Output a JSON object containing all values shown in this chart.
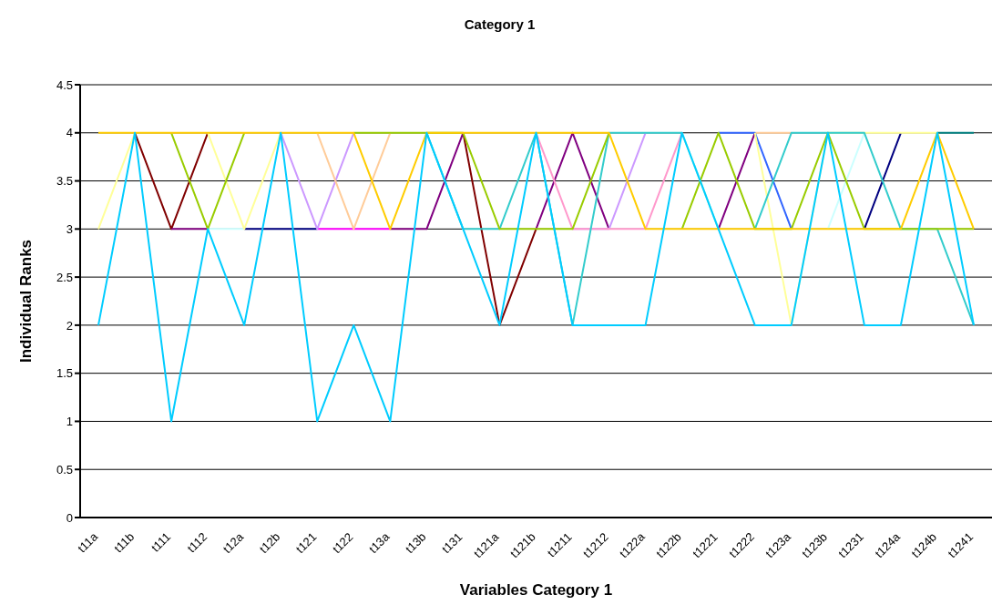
{
  "chart_data": {
    "type": "line",
    "title": "Category 1",
    "xlabel": "Variables Category 1",
    "ylabel": "Individual Ranks",
    "categories": [
      "t11a",
      "t11b",
      "t111",
      "t112",
      "t12a",
      "t12b",
      "t121",
      "t122",
      "t13a",
      "t13b",
      "t131",
      "t121a",
      "t121b",
      "t1211",
      "t1212",
      "t122a",
      "t122b",
      "t1221",
      "t1222",
      "t123a",
      "t123b",
      "t1231",
      "t124a",
      "t124b",
      "t1241"
    ],
    "ylim": [
      0,
      4.5
    ],
    "yticks": [
      0,
      0.5,
      1,
      1.5,
      2,
      2.5,
      3,
      3.5,
      4,
      4.5
    ],
    "grid": "y",
    "marker": "none",
    "line_style": "solid",
    "series": [
      {
        "color": "#800000",
        "values": [
          null,
          4,
          3,
          4,
          null,
          null,
          null,
          null,
          null,
          null,
          4,
          2,
          3,
          null,
          null,
          null,
          null,
          null,
          null,
          null,
          null,
          null,
          null,
          null,
          null
        ]
      },
      {
        "color": "#800080",
        "values": [
          null,
          null,
          3,
          3,
          null,
          null,
          null,
          null,
          3,
          3,
          4,
          null,
          3,
          4,
          3,
          null,
          null,
          3,
          4,
          null,
          null,
          null,
          null,
          null,
          null
        ]
      },
      {
        "color": "#000080",
        "values": [
          null,
          null,
          null,
          null,
          3,
          3,
          3,
          null,
          null,
          null,
          null,
          null,
          null,
          null,
          null,
          null,
          null,
          null,
          null,
          null,
          null,
          3,
          4,
          null,
          null
        ]
      },
      {
        "color": "#ff00ff",
        "values": [
          null,
          null,
          null,
          null,
          null,
          null,
          3,
          3,
          3,
          null,
          null,
          null,
          null,
          null,
          null,
          null,
          null,
          null,
          null,
          null,
          null,
          null,
          null,
          null,
          null
        ]
      },
      {
        "color": "#cc99ff",
        "values": [
          null,
          null,
          null,
          null,
          null,
          4,
          3,
          4,
          null,
          null,
          null,
          null,
          null,
          3,
          3,
          4,
          null,
          null,
          null,
          null,
          null,
          null,
          null,
          null,
          null
        ]
      },
      {
        "color": "#ffcc99",
        "values": [
          null,
          null,
          null,
          null,
          null,
          null,
          4,
          3,
          4,
          null,
          null,
          null,
          null,
          null,
          null,
          null,
          null,
          null,
          4,
          4,
          null,
          null,
          null,
          null,
          null
        ]
      },
      {
        "color": "#ff99cc",
        "values": [
          null,
          null,
          null,
          null,
          null,
          null,
          null,
          null,
          null,
          null,
          null,
          null,
          4,
          3,
          3,
          3,
          4,
          null,
          null,
          null,
          null,
          null,
          null,
          null,
          null
        ]
      },
      {
        "color": "#ccffff",
        "values": [
          null,
          null,
          null,
          3,
          3,
          null,
          null,
          null,
          null,
          null,
          null,
          null,
          null,
          null,
          null,
          null,
          null,
          null,
          null,
          null,
          3,
          4,
          null,
          null,
          null
        ]
      },
      {
        "color": "#99ffcc",
        "values": [
          null,
          null,
          null,
          null,
          null,
          null,
          null,
          null,
          null,
          null,
          null,
          null,
          null,
          null,
          null,
          null,
          4,
          3,
          null,
          null,
          null,
          null,
          null,
          null,
          null
        ]
      },
      {
        "color": "#3366ff",
        "values": [
          null,
          null,
          null,
          null,
          null,
          null,
          null,
          null,
          null,
          null,
          null,
          null,
          null,
          null,
          null,
          null,
          null,
          4,
          4,
          3,
          null,
          null,
          null,
          null,
          null
        ]
      },
      {
        "color": "#008080",
        "values": [
          null,
          null,
          null,
          null,
          null,
          null,
          null,
          null,
          null,
          null,
          null,
          null,
          null,
          null,
          null,
          null,
          null,
          null,
          null,
          null,
          null,
          null,
          null,
          4,
          4
        ]
      },
      {
        "color": "#ffff99",
        "values": [
          3,
          4,
          null,
          4,
          3,
          4,
          null,
          null,
          null,
          null,
          null,
          null,
          null,
          null,
          null,
          null,
          null,
          null,
          4,
          2,
          4,
          4,
          4,
          4,
          null
        ]
      },
      {
        "color": "#33cccc",
        "values": [
          null,
          null,
          null,
          null,
          null,
          null,
          null,
          null,
          null,
          4,
          3,
          3,
          4,
          2,
          4,
          4,
          4,
          null,
          3,
          4,
          4,
          4,
          3,
          3,
          2
        ]
      },
      {
        "color": "#99cc00",
        "values": [
          null,
          null,
          4,
          3,
          4,
          null,
          null,
          4,
          4,
          4,
          4,
          3,
          3,
          3,
          4,
          null,
          3,
          4,
          3,
          3,
          4,
          3,
          3,
          3,
          3
        ]
      },
      {
        "color": "#ffcc00",
        "values": [
          4,
          4,
          4,
          4,
          4,
          4,
          4,
          4,
          3,
          4,
          4,
          4,
          4,
          4,
          4,
          3,
          3,
          3,
          3,
          3,
          3,
          3,
          3,
          4,
          3
        ]
      },
      {
        "color": "#00ccff",
        "values": [
          2,
          4,
          1,
          3,
          2,
          4,
          1,
          2,
          1,
          4,
          3,
          2,
          4,
          2,
          2,
          2,
          4,
          3,
          2,
          2,
          4,
          2,
          2,
          4,
          2
        ]
      }
    ]
  }
}
